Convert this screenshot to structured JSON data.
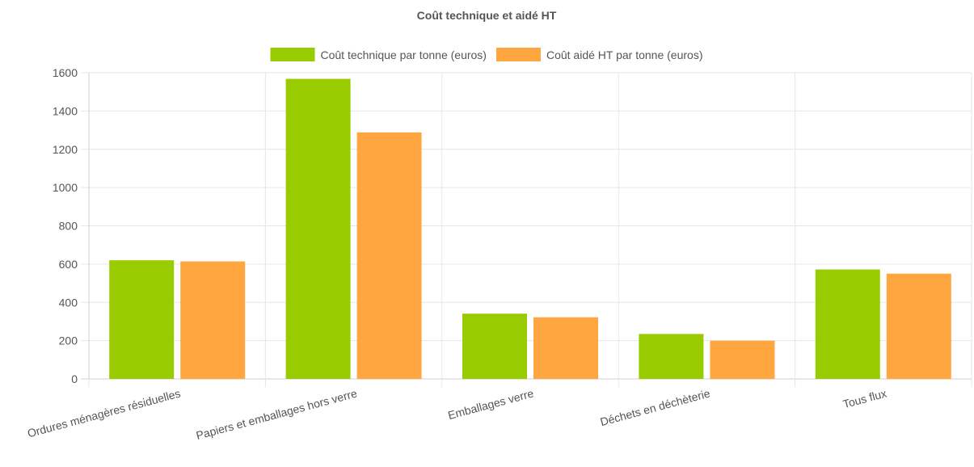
{
  "chart_data": {
    "type": "bar",
    "title": "Coût technique et aidé HT",
    "xlabel": "",
    "ylabel": "",
    "ylim": [
      0,
      1600
    ],
    "y_ticks": [
      0,
      200,
      400,
      600,
      800,
      1000,
      1200,
      1400,
      1600
    ],
    "grid": true,
    "legend_position": "top",
    "categories": [
      "Ordures ménagères résiduelles",
      "Papiers et emballages hors verre",
      "Emballages verre",
      "Déchets en déchèterie",
      "Tous flux"
    ],
    "series": [
      {
        "name": "Coût technique par tonne (euros)",
        "color": "#99cc00",
        "values": [
          620,
          1568,
          341,
          235,
          572
        ]
      },
      {
        "name": "Coût aidé HT par tonne (euros)",
        "color": "#ffa640",
        "values": [
          614,
          1288,
          322,
          200,
          550
        ]
      }
    ]
  }
}
